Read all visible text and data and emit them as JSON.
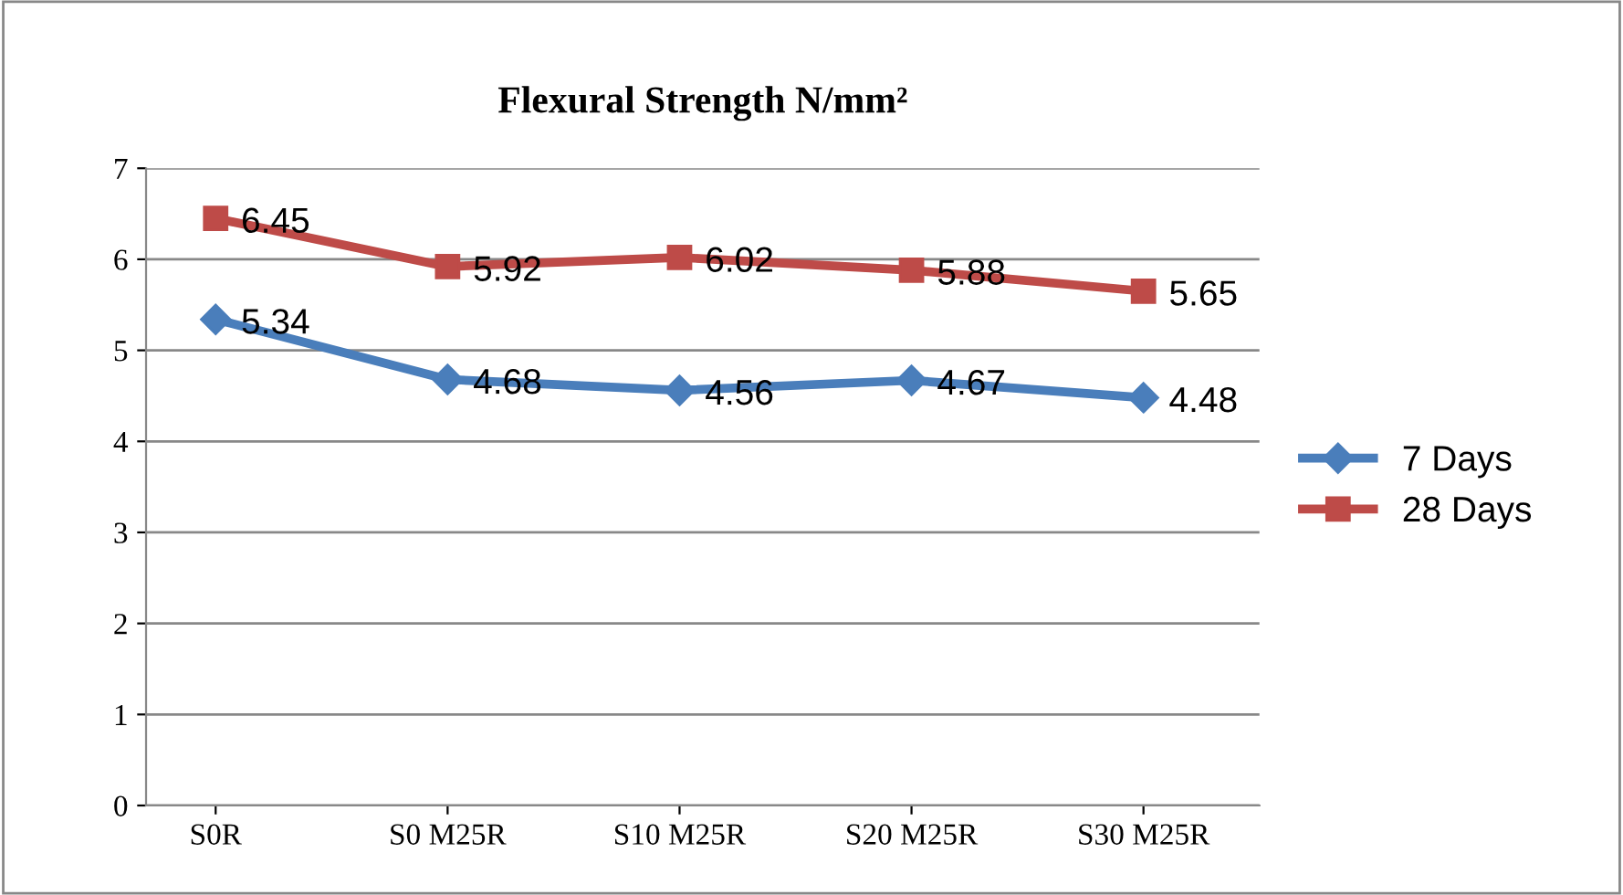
{
  "chart_data": {
    "type": "line",
    "title": "Flexural Strength N/mm²",
    "categories": [
      "S0R",
      "S0 M25R",
      "S10 M25R",
      "S20 M25R",
      "S30 M25R"
    ],
    "series": [
      {
        "name": "7 Days",
        "color": "#4a7ebb",
        "marker": "diamond",
        "values": [
          5.34,
          4.68,
          4.56,
          4.67,
          4.48
        ]
      },
      {
        "name": "28 Days",
        "color": "#be4b48",
        "marker": "square",
        "values": [
          6.45,
          5.92,
          6.02,
          5.88,
          5.65
        ]
      }
    ],
    "ylim": [
      0,
      7
    ],
    "yticks": [
      0,
      1,
      2,
      3,
      4,
      5,
      6,
      7
    ],
    "grid": "y",
    "legend": "right",
    "data_labels": true,
    "line_style": "solid"
  }
}
